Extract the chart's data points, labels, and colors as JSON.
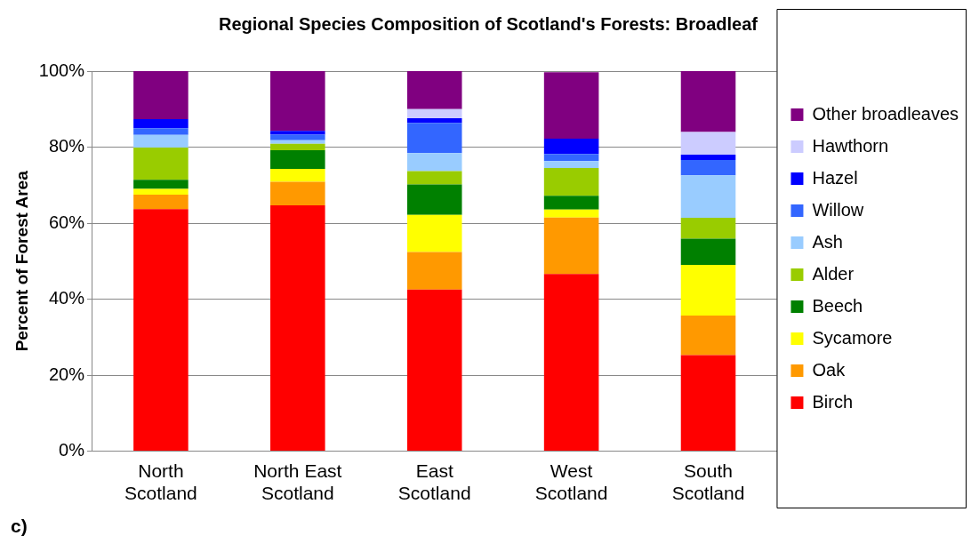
{
  "chart_data": {
    "type": "bar",
    "stacked": true,
    "title": "Regional Species Composition of Scotland's Forests: Broadleaf",
    "ylabel": "Percent of Forest Area",
    "annotations": [
      "c)"
    ],
    "categories": [
      "North Scotland",
      "North East Scotland",
      "East Scotland",
      "West Scotland",
      "South Scotland"
    ],
    "ylim": [
      0,
      100
    ],
    "yticks": [
      {
        "value": 0,
        "label": "0%"
      },
      {
        "value": 20,
        "label": "20%"
      },
      {
        "value": 40,
        "label": "40%"
      },
      {
        "value": 60,
        "label": "60%"
      },
      {
        "value": 80,
        "label": "80%"
      },
      {
        "value": 100,
        "label": "100%"
      }
    ],
    "grid": "y",
    "legend": "right",
    "series": [
      {
        "name": "Birch",
        "color": "#ff0000",
        "values": [
          63.7,
          64.7,
          42.5,
          46.6,
          25.3
        ]
      },
      {
        "name": "Oak",
        "color": "#ff9900",
        "values": [
          3.8,
          6.2,
          9.9,
          14.9,
          10.4
        ]
      },
      {
        "name": "Sycamore",
        "color": "#ffff00",
        "values": [
          1.5,
          3.4,
          9.8,
          2.1,
          13.3
        ]
      },
      {
        "name": "Beech",
        "color": "#008000",
        "values": [
          2.4,
          4.9,
          8.0,
          3.6,
          6.9
        ]
      },
      {
        "name": "Alder",
        "color": "#99cc00",
        "values": [
          8.5,
          1.7,
          3.5,
          7.3,
          5.5
        ]
      },
      {
        "name": "Ash",
        "color": "#99ccff",
        "values": [
          3.3,
          0.9,
          4.7,
          1.8,
          11.2
        ]
      },
      {
        "name": "Willow",
        "color": "#3366ff",
        "values": [
          1.8,
          1.5,
          8.0,
          1.9,
          4.0
        ]
      },
      {
        "name": "Hazel",
        "color": "#0000ff",
        "values": [
          2.4,
          1.0,
          1.2,
          4.0,
          1.4
        ]
      },
      {
        "name": "Hawthorn",
        "color": "#ccccff",
        "values": [
          0,
          0,
          2.4,
          null,
          6.0
        ]
      },
      {
        "name": "Other broadleaves",
        "color": "#800080",
        "values": [
          12.6,
          15.7,
          10.0,
          17.5,
          16.0
        ]
      }
    ]
  }
}
